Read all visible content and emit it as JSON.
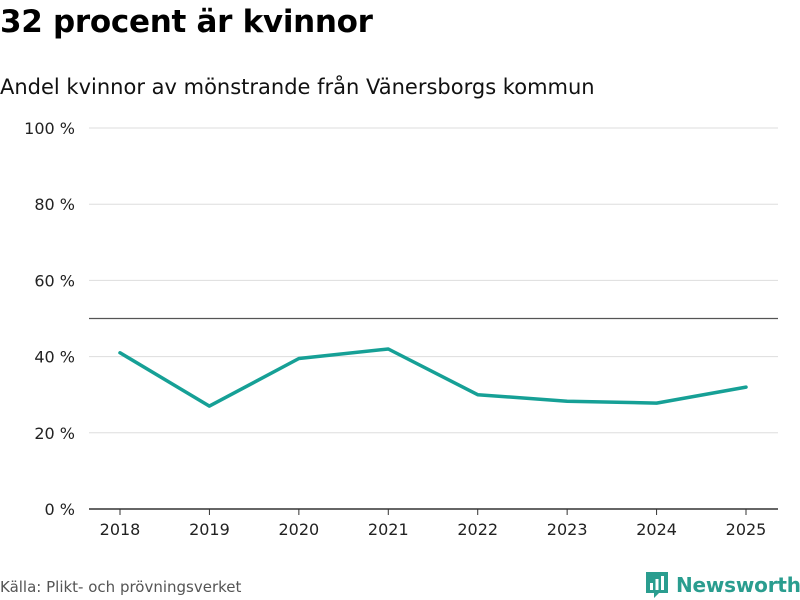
{
  "title": "32 procent är kvinnor",
  "subtitle": "Andel kvinnor av mönstrande från Vänersborgs kommun",
  "source": "Källa: Plikt- och prövningsverket",
  "brand": {
    "name": "Newsworthy",
    "icon": "newsworthy-logo-icon",
    "color": "#2a9d8f"
  },
  "chart_data": {
    "type": "line",
    "title": "Andel kvinnor av mönstrande från Vänersborgs kommun",
    "xlabel": "",
    "ylabel": "",
    "x": [
      "2018",
      "2019",
      "2020",
      "2021",
      "2022",
      "2023",
      "2024",
      "2025"
    ],
    "series": [
      {
        "name": "Andel kvinnor",
        "values": [
          41,
          27,
          39.5,
          42,
          30,
          28.3,
          27.8,
          32
        ],
        "color": "#16a096"
      }
    ],
    "ylim": [
      0,
      100
    ],
    "yticks": [
      0,
      20,
      40,
      60,
      80,
      100
    ],
    "ytick_labels": [
      "0 %",
      "20 %",
      "40 %",
      "60 %",
      "80 %",
      "100 %"
    ],
    "reference_line": {
      "value": 50,
      "color": "#555555"
    },
    "grid": true
  }
}
